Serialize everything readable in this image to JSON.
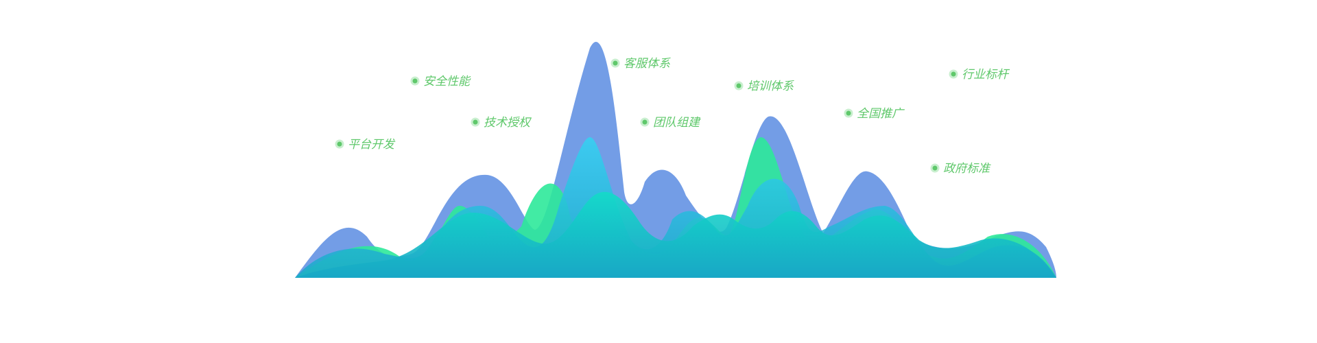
{
  "chart_data": {
    "type": "area",
    "title": "",
    "xlabel": "",
    "ylabel": "",
    "labels": [
      {
        "text": "平台开发"
      },
      {
        "text": "安全性能"
      },
      {
        "text": "技术授权"
      },
      {
        "text": "客服体系"
      },
      {
        "text": "团队组建"
      },
      {
        "text": "培训体系"
      },
      {
        "text": "全国推广"
      },
      {
        "text": "政府标准"
      },
      {
        "text": "行业标杆"
      }
    ],
    "legend": "none",
    "grid": false,
    "axes_visible": false,
    "colors": {
      "label_text": "#5fc86b",
      "label_dot": "#5fc86b",
      "label_dot_halo": "#c9efcf",
      "back_layer": "#6b98e5",
      "green_layer": "#2ee99a",
      "cyan_layer_top": "#33d3f2",
      "cyan_layer_bottom": "#1aa7c9",
      "base_layer_top": "#12dcc8",
      "base_layer_bottom": "#18a6c6"
    }
  }
}
